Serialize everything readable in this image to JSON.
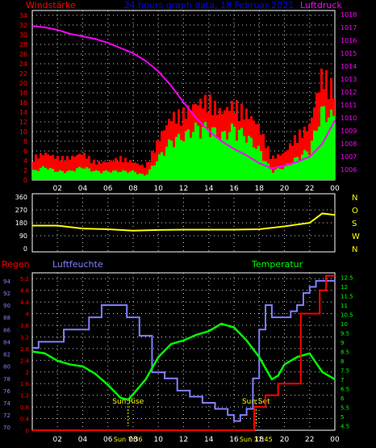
{
  "colors": {
    "bg": "#000000",
    "axis": "#ffffff",
    "grid": "#ffffff",
    "wind_gust": "#ff0000",
    "wind_avg": "#00ff00",
    "pressure": "#ff00ff",
    "direction": "#ffff00",
    "rain": "#ff0000",
    "humidity": "#8080ff",
    "temperature": "#00ff00",
    "title": "#0000ff",
    "sun": "#ffff00"
  },
  "chart_data": [
    {
      "type": "bar",
      "title": "24 hours graph data, 18 Februar 2021",
      "left_label": "Windstärke",
      "right_label": "Luftdruck",
      "x_ticks": [
        "02",
        "04",
        "06",
        "08",
        "10",
        "12",
        "14",
        "16",
        "18",
        "20",
        "22",
        "00"
      ],
      "y_left_ticks": [
        "0",
        "2",
        "4",
        "6",
        "8",
        "10",
        "12",
        "14",
        "16",
        "18",
        "20",
        "22",
        "24",
        "26",
        "28",
        "30",
        "32",
        "34"
      ],
      "y_right_ticks": [
        "1006",
        "1007",
        "1008",
        "1009",
        "1010",
        "1011",
        "1012",
        "1013",
        "1014",
        "1015",
        "1016",
        "1017",
        "1018"
      ],
      "ylim_left": [
        0,
        35
      ],
      "ylim_right": [
        1005.2,
        1018.3
      ],
      "x_hours": [
        0,
        1,
        2,
        3,
        4,
        5,
        6,
        7,
        8,
        9,
        10,
        11,
        12,
        13,
        14,
        15,
        16,
        17,
        18,
        19,
        20,
        21,
        22,
        23,
        24
      ],
      "series": [
        {
          "values": [
            5,
            6,
            5,
            5,
            6,
            4,
            4,
            5,
            4,
            3,
            9,
            14,
            15,
            17,
            18,
            15,
            17,
            15,
            12,
            5,
            6,
            10,
            12,
            24,
            20
          ]
        },
        {
          "values": [
            2,
            3,
            2,
            2,
            3,
            2,
            2,
            2,
            2,
            1,
            5,
            9,
            10,
            12,
            12,
            10,
            12,
            10,
            7,
            2,
            3,
            5,
            7,
            16,
            14
          ]
        },
        {
          "values": [
            1017.1,
            1017.0,
            1016.8,
            1016.5,
            1016.3,
            1016.1,
            1015.8,
            1015.4,
            1015.0,
            1014.4,
            1013.6,
            1012.5,
            1011.2,
            1010.0,
            1009.0,
            1008.2,
            1007.6,
            1007.1,
            1006.5,
            1006.1,
            1006.3,
            1006.6,
            1007.0,
            1008.0,
            1009.8
          ]
        }
      ]
    },
    {
      "type": "line",
      "left_ticks": [
        "0",
        "90",
        "180",
        "270",
        "360"
      ],
      "right_labels": [
        "N",
        "W",
        "S",
        "O",
        "N"
      ],
      "ylim": [
        0,
        360
      ],
      "x_hours": [
        0,
        2,
        4,
        6,
        8,
        10,
        12,
        14,
        16,
        18,
        20,
        22,
        23,
        24
      ],
      "series": [
        {
          "values": [
            160,
            160,
            140,
            135,
            125,
            130,
            132,
            132,
            132,
            135,
            155,
            180,
            245,
            235
          ]
        }
      ]
    },
    {
      "type": "line",
      "rain_label": "Regen",
      "humidity_label": "Luftfeuchte",
      "temp_label": "Temperatur",
      "x_ticks": [
        "02",
        "04",
        "06",
        "08",
        "10",
        "12",
        "14",
        "16",
        "18",
        "20",
        "22",
        "00"
      ],
      "rain_ticks": [
        "0",
        "0.4",
        "0.8",
        "1.2",
        "1.6",
        "2",
        "2.4",
        "2.8",
        "3.2",
        "3.6",
        "4",
        "4.4",
        "4.8",
        "5.2"
      ],
      "humidity_ticks": [
        "70",
        "72",
        "74",
        "76",
        "78",
        "80",
        "82",
        "84",
        "86",
        "88",
        "90",
        "92",
        "94"
      ],
      "temp_ticks": [
        "4.5",
        "5",
        "5.5",
        "6",
        "6.5",
        "7",
        "7.5",
        "8",
        "8.5",
        "9",
        "9.5",
        "10",
        "10.5",
        "11",
        "11.5",
        "12",
        "12.5"
      ],
      "rain_ylim": [
        0,
        5.4
      ],
      "humidity_ylim": [
        69.5,
        95.3
      ],
      "temp_ylim": [
        4.25,
        12.75
      ],
      "annotations": [
        {
          "label": "Sun Rise",
          "time": "Sun 7:36",
          "hour": 7.6
        },
        {
          "label": "Sun Set",
          "time": "Sun 17:45",
          "hour": 17.75
        }
      ],
      "series": [
        {
          "x": [
            0,
            17.6,
            17.6,
            18.5,
            18.5,
            19.5,
            19.5,
            21.3,
            21.3,
            22.8,
            22.8,
            23.3,
            23.3,
            24.2
          ],
          "values": [
            0,
            0,
            0.8,
            0.8,
            1.2,
            1.2,
            1.6,
            1.6,
            4.0,
            4.0,
            4.8,
            4.8,
            5.3,
            5.3
          ]
        },
        {
          "x": [
            0,
            0.5,
            1.5,
            2.5,
            3.5,
            4.5,
            5.5,
            6.5,
            7.5,
            8.5,
            9.5,
            10.5,
            11.5,
            12.5,
            13.5,
            14.5,
            15.5,
            16,
            16.5,
            17,
            17.5,
            18,
            18.5,
            19,
            19.5,
            20,
            20.5,
            21,
            21.5,
            22,
            22.5,
            23,
            23.5,
            24
          ],
          "values": [
            83,
            84,
            84,
            86,
            86,
            88,
            90,
            90,
            88,
            85,
            79,
            78,
            76,
            75,
            74,
            73,
            72,
            71,
            72,
            73,
            78,
            86,
            90,
            88,
            88,
            88,
            89,
            90,
            92,
            93,
            94,
            94,
            94,
            94
          ]
        },
        {
          "x": [
            0,
            1,
            2,
            3,
            4,
            5,
            6,
            7,
            7.6,
            8,
            9,
            10,
            11,
            12,
            13,
            14,
            15,
            16,
            17,
            18,
            19,
            19.5,
            20,
            21,
            22,
            23,
            24
          ],
          "values": [
            8.5,
            8.4,
            8.0,
            7.8,
            7.7,
            7.3,
            6.7,
            6.0,
            5.9,
            6.2,
            7.0,
            8.2,
            8.9,
            9.1,
            9.4,
            9.6,
            10.0,
            9.8,
            9.1,
            8.2,
            7.0,
            7.2,
            7.8,
            8.2,
            8.4,
            7.4,
            7.0
          ]
        }
      ]
    }
  ]
}
